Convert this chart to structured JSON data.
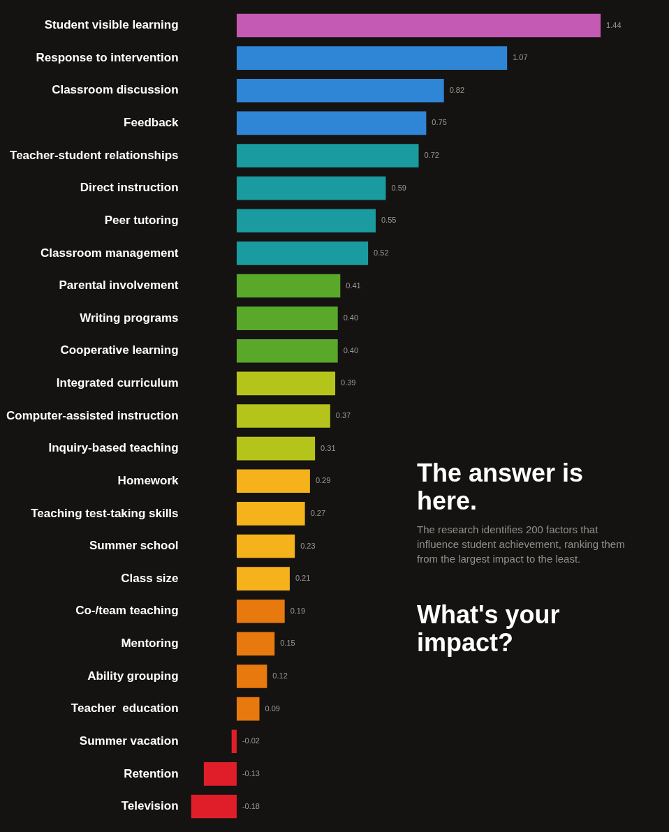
{
  "chart_data": {
    "type": "bar",
    "orientation": "horizontal",
    "legend": false,
    "value_labels": [
      "1.44",
      "1.07",
      "0.82",
      "0.75",
      "0.72",
      "0.59",
      "0.55",
      "0.52",
      "0.41",
      "0.40",
      "0.40",
      "0.39",
      "0.37",
      "0.31",
      "0.29",
      "0.27",
      "0.23",
      "0.21",
      "0.19",
      "0.15",
      "0.12",
      "0.09",
      "-0.02",
      "-0.13",
      "-0.18"
    ],
    "categories": [
      "Student visible learning",
      "Response to intervention",
      "Classroom discussion",
      "Feedback",
      "Teacher-student relationships",
      "Direct instruction",
      "Peer tutoring",
      "Classroom management",
      "Parental involvement",
      "Writing programs",
      "Cooperative learning",
      "Integrated curriculum",
      "Computer-assisted instruction",
      "Inquiry-based teaching",
      "Homework",
      "Teaching test-taking skills",
      "Summer school",
      "Class size",
      "Co-/team teaching",
      "Mentoring",
      "Ability grouping",
      "Teacher  education",
      "Summer vacation",
      "Retention",
      "Television"
    ],
    "values": [
      1.44,
      1.07,
      0.82,
      0.75,
      0.72,
      0.59,
      0.55,
      0.52,
      0.41,
      0.4,
      0.4,
      0.39,
      0.37,
      0.31,
      0.29,
      0.27,
      0.23,
      0.21,
      0.19,
      0.15,
      0.12,
      0.09,
      -0.02,
      -0.13,
      -0.18
    ],
    "colors": [
      "#c45ab3",
      "#2f86d6",
      "#2f86d6",
      "#2f86d6",
      "#1a9ba0",
      "#1a9ba0",
      "#1a9ba0",
      "#1a9ba0",
      "#5aa82a",
      "#5aa82a",
      "#5aa82a",
      "#b5c41a",
      "#b5c41a",
      "#b5c41a",
      "#f5b21a",
      "#f5b21a",
      "#f5b21a",
      "#f5b21a",
      "#e8790f",
      "#e8790f",
      "#e8790f",
      "#e8790f",
      "#e01e2a",
      "#e01e2a",
      "#e01e2a"
    ],
    "annotations": [
      "The answer is here.",
      "The research identifies 200 factors that influence student achievement, ranking them from the largest impact to the least.",
      "What's your impact?"
    ]
  }
}
